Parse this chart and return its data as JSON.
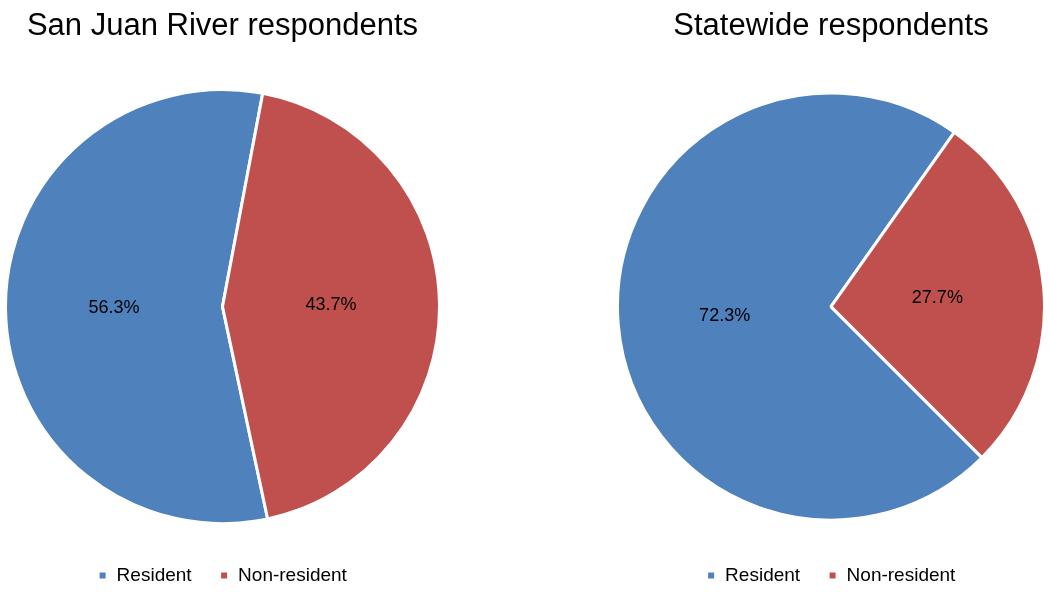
{
  "chart_data": [
    {
      "type": "pie",
      "title": "San Juan River respondents",
      "categories": [
        "Resident",
        "Non-resident"
      ],
      "values": [
        56.3,
        43.7
      ],
      "colors": [
        "#4f81bd",
        "#c0504d"
      ],
      "value_labels": [
        "56.3%",
        "43.7%"
      ],
      "legend": "bottom"
    },
    {
      "type": "pie",
      "title": "Statewide respondents",
      "categories": [
        "Resident",
        "Non-resident"
      ],
      "values": [
        72.3,
        27.7
      ],
      "colors": [
        "#4f81bd",
        "#c0504d"
      ],
      "value_labels": [
        "72.3%",
        "27.7%"
      ],
      "legend": "bottom"
    }
  ]
}
